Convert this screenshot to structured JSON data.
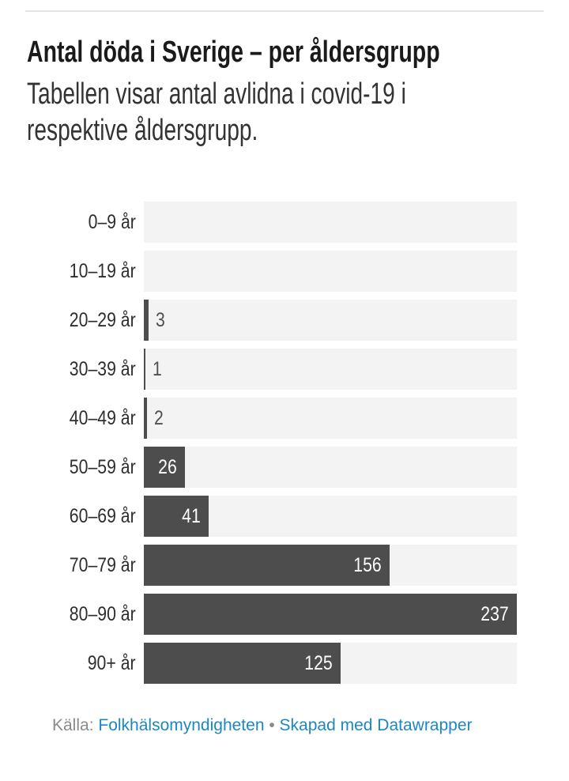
{
  "chart_data": {
    "type": "bar",
    "orientation": "horizontal",
    "title": "Antal döda i Sverige – per åldersgrupp",
    "description_lines": [
      "Tabellen visar antal avlidna i covid-19 i",
      "respektive åldersgrupp."
    ],
    "categories": [
      "0–9 år",
      "10–19 år",
      "20–29 år",
      "30–39 år",
      "40–49 år",
      "50–59 år",
      "60–69 år",
      "70–79 år",
      "80–90 år",
      "90+ år"
    ],
    "values": [
      0,
      0,
      3,
      1,
      2,
      26,
      41,
      156,
      237,
      125
    ],
    "max_value": 237,
    "value_label_inside_threshold": 10,
    "grid": false,
    "legend": false
  },
  "colors": {
    "bar": "#4d4d4d",
    "track": "#f3f3f3",
    "title_text": "#1a1a1a",
    "subtitle_text": "#333333",
    "label_text": "#2e2e2e",
    "value_outside_text": "#4f4f4f",
    "value_inside_text": "#ffffff",
    "link": "#1d87c4",
    "footer_text": "#8a8a8a",
    "divider": "#e4e4e4"
  },
  "footer": {
    "source_label": "Källa:",
    "source_link_label": "Folkhälsomyndigheten",
    "separator": "•",
    "attribution_link_label": "Skapad med Datawrapper"
  }
}
